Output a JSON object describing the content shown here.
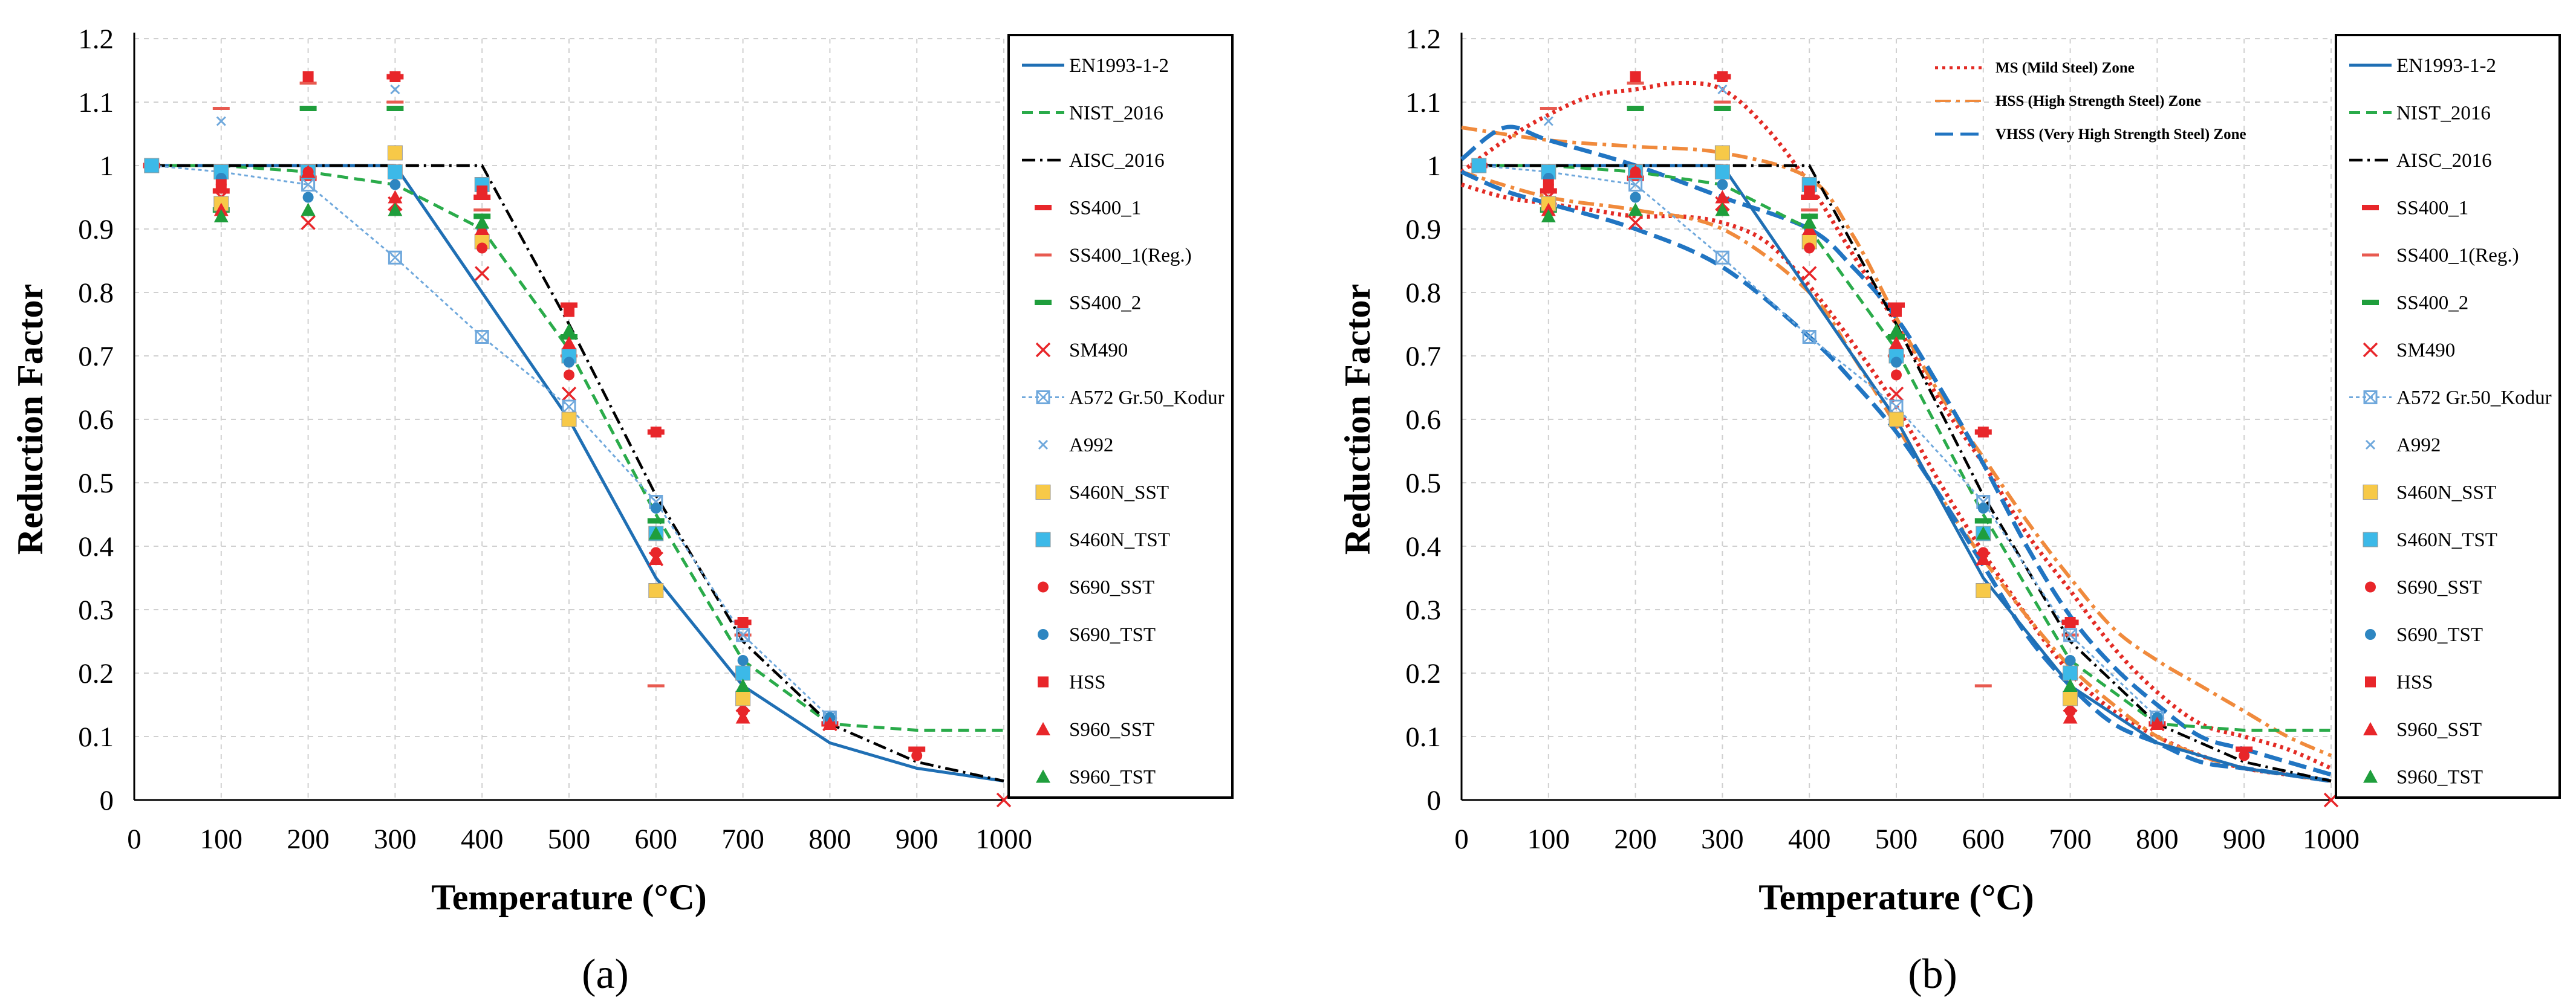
{
  "figure": {
    "panel_labels": [
      "(a)",
      "(b)"
    ],
    "xlabel": "Temperature (°C)",
    "ylabel": "Reduction Factor",
    "xticks": [
      "0",
      "100",
      "200",
      "300",
      "400",
      "500",
      "600",
      "700",
      "800",
      "900",
      "1000"
    ],
    "yticks": [
      "0",
      "0.1",
      "0.2",
      "0.3",
      "0.4",
      "0.5",
      "0.6",
      "0.7",
      "0.8",
      "0.9",
      "1",
      "1.1",
      "1.2"
    ]
  },
  "colors": {
    "en": "#1f6fb4",
    "nist": "#2aab4a",
    "aisc": "#000000",
    "red": "#e8262a",
    "dashred": "#e85a50",
    "green": "#1f9e3c",
    "blue": "#2e86c1",
    "lightblue": "#6fa8dc",
    "yellow": "#f7c948",
    "cyan": "#3cb9e8",
    "ms": "#e32b24",
    "hss": "#f08a3c",
    "vhss": "#2175c2"
  },
  "chart_data": [
    {
      "type": "scatter",
      "title": "(a)",
      "xlabel": "Temperature (°C)",
      "ylabel": "Reduction Factor",
      "xlim": [
        0,
        1000
      ],
      "ylim": [
        0,
        1.2
      ],
      "grid": true,
      "legend_position": "right",
      "series": [
        {
          "name": "EN1993-1-2",
          "kind": "line",
          "x": [
            20,
            100,
            200,
            300,
            400,
            500,
            600,
            700,
            800,
            900,
            1000
          ],
          "y": [
            1,
            1,
            1,
            1,
            0.8,
            0.6,
            0.35,
            0.18,
            0.09,
            0.05,
            0.03
          ]
        },
        {
          "name": "NIST_2016",
          "kind": "line",
          "x": [
            20,
            100,
            200,
            300,
            400,
            500,
            600,
            700,
            800,
            900,
            1000
          ],
          "y": [
            1,
            1,
            0.99,
            0.97,
            0.9,
            0.71,
            0.45,
            0.22,
            0.12,
            0.11,
            0.11
          ]
        },
        {
          "name": "AISC_2016",
          "kind": "line",
          "x": [
            20,
            100,
            200,
            300,
            400,
            500,
            600,
            700,
            800,
            900,
            1000
          ],
          "y": [
            1,
            1,
            1,
            1,
            1,
            0.75,
            0.48,
            0.25,
            0.12,
            0.06,
            0.03
          ]
        },
        {
          "name": "SS400_1",
          "kind": "points",
          "x": [
            20,
            100,
            200,
            300,
            400,
            500,
            600,
            700,
            800,
            900
          ],
          "y": [
            1,
            0.96,
            0.98,
            1.14,
            0.95,
            0.78,
            0.58,
            0.28,
            0.12,
            0.08
          ]
        },
        {
          "name": "SS400_1(Reg.)",
          "kind": "points",
          "x": [
            100,
            200,
            300,
            400,
            500,
            600,
            700
          ],
          "y": [
            1.09,
            1.13,
            1.1,
            0.93,
            0.7,
            0.18,
            0.26
          ]
        },
        {
          "name": "SS400_2",
          "kind": "points",
          "x": [
            100,
            200,
            300,
            400,
            500,
            600
          ],
          "y": [
            0.93,
            1.09,
            1.09,
            0.92,
            0.73,
            0.44
          ]
        },
        {
          "name": "SM490",
          "kind": "points",
          "x": [
            100,
            200,
            300,
            400,
            500,
            600,
            700,
            800,
            1000
          ],
          "y": [
            0.95,
            0.91,
            0.94,
            0.83,
            0.64,
            0.38,
            0.15,
            0.12,
            0
          ]
        },
        {
          "name": "A572 Gr.50_Kodur",
          "kind": "line-points",
          "x": [
            20,
            100,
            200,
            300,
            400,
            500,
            600,
            700,
            800
          ],
          "y": [
            1,
            0.99,
            0.97,
            0.855,
            0.73,
            0.62,
            0.47,
            0.26,
            0.13
          ]
        },
        {
          "name": "A992",
          "kind": "points",
          "x": [
            100,
            200,
            300,
            600,
            800
          ],
          "y": [
            1.07,
            1.14,
            1.12,
            0.47,
            0.13
          ]
        },
        {
          "name": "S460N_SST",
          "kind": "points",
          "x": [
            100,
            200,
            300,
            400,
            500,
            600,
            700
          ],
          "y": [
            0.94,
            0.99,
            1.02,
            0.88,
            0.6,
            0.33,
            0.16
          ]
        },
        {
          "name": "S460N_TST",
          "kind": "points",
          "x": [
            20,
            100,
            200,
            300,
            400,
            500,
            600,
            700
          ],
          "y": [
            1,
            0.99,
            0.99,
            0.99,
            0.97,
            0.7,
            0.42,
            0.2
          ]
        },
        {
          "name": "S690_SST",
          "kind": "points",
          "x": [
            100,
            200,
            300,
            400,
            500,
            600,
            700,
            800,
            900
          ],
          "y": [
            0.97,
            0.99,
            0.93,
            0.87,
            0.67,
            0.39,
            0.14,
            0.12,
            0.07
          ]
        },
        {
          "name": "S690_TST",
          "kind": "points",
          "x": [
            100,
            200,
            300,
            400,
            500,
            600,
            700,
            800
          ],
          "y": [
            0.98,
            0.95,
            0.97,
            0.9,
            0.69,
            0.46,
            0.22,
            0.13
          ]
        },
        {
          "name": "HSS",
          "kind": "points",
          "x": [
            100,
            200,
            300,
            400,
            500,
            600,
            700
          ],
          "y": [
            0.97,
            1.14,
            1.14,
            0.96,
            0.77,
            0.58,
            0.28
          ]
        },
        {
          "name": "S960_SST",
          "kind": "points",
          "x": [
            100,
            200,
            300,
            400,
            500,
            600,
            700,
            800
          ],
          "y": [
            0.93,
            0.99,
            0.95,
            0.9,
            0.72,
            0.38,
            0.13,
            0.12
          ]
        },
        {
          "name": "S960_TST",
          "kind": "points",
          "x": [
            100,
            200,
            300,
            400,
            500,
            600,
            700
          ],
          "y": [
            0.92,
            0.93,
            0.93,
            0.91,
            0.74,
            0.42,
            0.18
          ]
        }
      ]
    },
    {
      "type": "scatter",
      "title": "(b)",
      "xlabel": "Temperature (°C)",
      "ylabel": "Reduction Factor",
      "xlim": [
        0,
        1000
      ],
      "ylim": [
        0,
        1.2
      ],
      "grid": true,
      "legend_position": "right",
      "zone_legend_position": "top-center",
      "zones": [
        {
          "name": "MS (Mild Steel) Zone",
          "upper": {
            "x": [
              0,
              50,
              100,
              150,
              200,
              250,
              300,
              350,
              400,
              450,
              500,
              550,
              600,
              650,
              700,
              750,
              800,
              850,
              900,
              950,
              1000
            ],
            "y": [
              0.99,
              1.04,
              1.08,
              1.11,
              1.12,
              1.13,
              1.12,
              1.06,
              0.97,
              0.86,
              0.75,
              0.63,
              0.53,
              0.42,
              0.33,
              0.24,
              0.17,
              0.12,
              0.1,
              0.08,
              0.05
            ]
          },
          "lower": {
            "x": [
              0,
              50,
              100,
              150,
              200,
              250,
              300,
              350,
              400,
              450,
              500,
              550,
              600,
              650,
              700,
              750,
              800,
              850,
              900,
              950,
              1000
            ],
            "y": [
              0.97,
              0.95,
              0.94,
              0.93,
              0.92,
              0.92,
              0.91,
              0.88,
              0.81,
              0.72,
              0.62,
              0.5,
              0.39,
              0.29,
              0.2,
              0.14,
              0.1,
              0.07,
              0.05,
              0.04,
              0.03
            ]
          }
        },
        {
          "name": "HSS (High Strength Steel) Zone",
          "upper": {
            "x": [
              0,
              100,
              200,
              300,
              400,
              450,
              500,
              550,
              600,
              650,
              700,
              750,
              800,
              850,
              900,
              950,
              1000
            ],
            "y": [
              1.06,
              1.04,
              1.03,
              1.02,
              0.98,
              0.89,
              0.76,
              0.64,
              0.54,
              0.44,
              0.35,
              0.27,
              0.22,
              0.18,
              0.14,
              0.1,
              0.07
            ]
          },
          "lower": {
            "x": [
              0,
              100,
              200,
              300,
              400,
              450,
              500,
              550,
              600,
              650,
              700,
              750,
              800,
              850,
              900,
              950,
              1000
            ],
            "y": [
              0.99,
              0.95,
              0.93,
              0.9,
              0.8,
              0.7,
              0.59,
              0.48,
              0.38,
              0.29,
              0.21,
              0.15,
              0.1,
              0.07,
              0.05,
              0.04,
              0.03
            ]
          }
        },
        {
          "name": "VHSS (Very High Strength Steel) Zone",
          "upper": {
            "x": [
              0,
              50,
              100,
              200,
              300,
              400,
              450,
              500,
              550,
              600,
              650,
              700,
              750,
              800,
              850,
              900,
              950,
              1000
            ],
            "y": [
              1.01,
              1.06,
              1.04,
              1.0,
              0.95,
              0.9,
              0.84,
              0.76,
              0.65,
              0.53,
              0.4,
              0.29,
              0.21,
              0.15,
              0.1,
              0.08,
              0.06,
              0.04
            ]
          },
          "lower": {
            "x": [
              0,
              50,
              100,
              200,
              300,
              400,
              450,
              500,
              550,
              600,
              650,
              700,
              750,
              800,
              850,
              900,
              950,
              1000
            ],
            "y": [
              0.99,
              0.96,
              0.94,
              0.9,
              0.84,
              0.73,
              0.66,
              0.58,
              0.48,
              0.37,
              0.26,
              0.18,
              0.12,
              0.09,
              0.06,
              0.05,
              0.04,
              0.03
            ]
          }
        }
      ],
      "series_same_as_panel": "(a)"
    }
  ],
  "legend": {
    "items": [
      "EN1993-1-2",
      "NIST_2016",
      "AISC_2016",
      "SS400_1",
      "SS400_1(Reg.)",
      "SS400_2",
      "SM490",
      "A572 Gr.50_Kodur",
      "A992",
      "S460N_SST",
      "S460N_TST",
      "S690_SST",
      "S690_TST",
      "HSS",
      "S960_SST",
      "S960_TST"
    ],
    "zones": [
      "MS (Mild Steel) Zone",
      "HSS (High Strength Steel) Zone",
      "VHSS (Very High Strength Steel) Zone"
    ]
  }
}
